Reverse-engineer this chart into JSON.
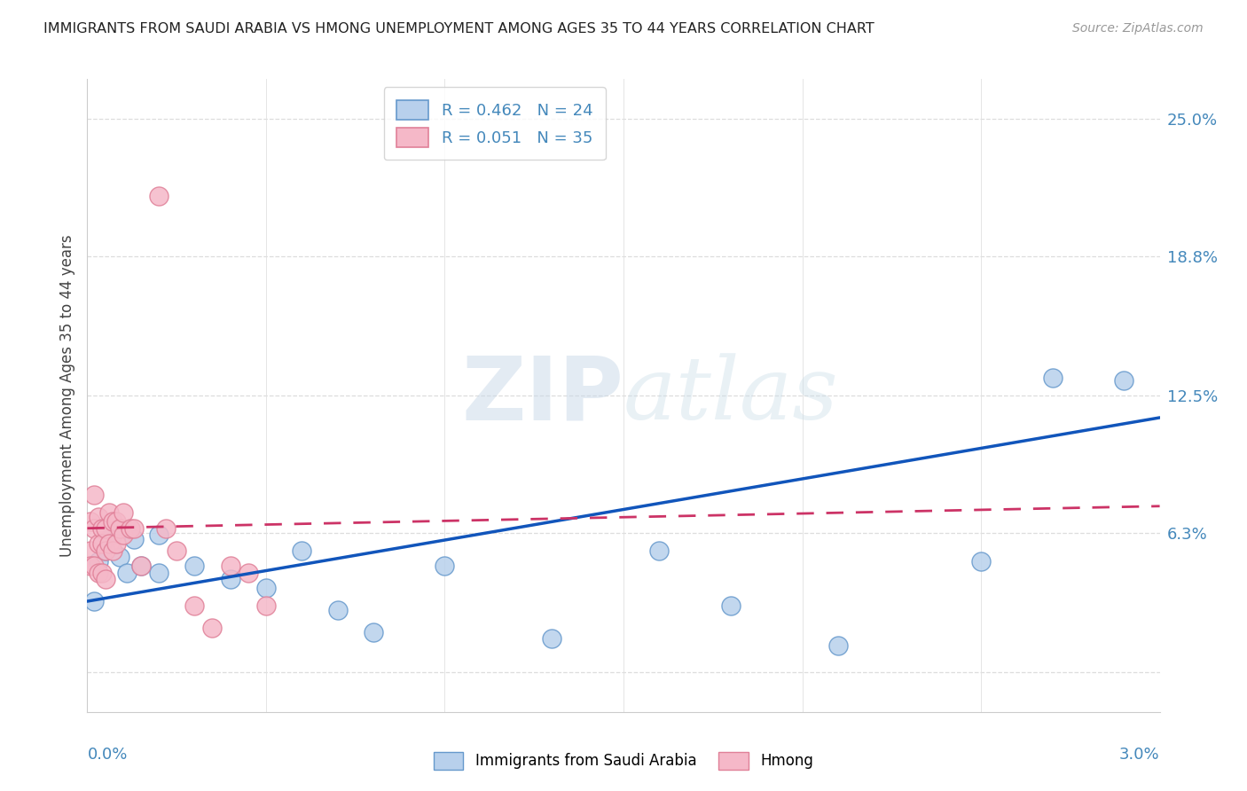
{
  "title": "IMMIGRANTS FROM SAUDI ARABIA VS HMONG UNEMPLOYMENT AMONG AGES 35 TO 44 YEARS CORRELATION CHART",
  "source": "Source: ZipAtlas.com",
  "ylabel": "Unemployment Among Ages 35 to 44 years",
  "ytick_vals": [
    0.0,
    0.063,
    0.125,
    0.188,
    0.25
  ],
  "ytick_labels": [
    "",
    "6.3%",
    "12.5%",
    "18.8%",
    "25.0%"
  ],
  "xmin": 0.0,
  "xmax": 0.03,
  "ymin": -0.018,
  "ymax": 0.268,
  "saudi_color_face": "#b8d0ec",
  "saudi_color_edge": "#6699cc",
  "hmong_color_face": "#f5b8c8",
  "hmong_color_edge": "#e08098",
  "trend_saudi_color": "#1155bb",
  "trend_hmong_color": "#cc3366",
  "watermark": "ZIPatlas",
  "watermark_color": "#dce8f0",
  "legend_R_saudi": "0.462",
  "legend_N_saudi": "24",
  "legend_R_hmong": "0.051",
  "legend_N_hmong": "35",
  "background_color": "#ffffff",
  "grid_color": "#dddddd",
  "title_color": "#222222",
  "source_color": "#999999",
  "axis_label_color": "#4488bb",
  "ylabel_color": "#444444",
  "xtick_minor": [
    0.005,
    0.01,
    0.015,
    0.02,
    0.025
  ],
  "legend_label_saudi": "Immigrants from Saudi Arabia",
  "legend_label_hmong": "Hmong",
  "saudi_x": [
    0.0002,
    0.0003,
    0.0005,
    0.0007,
    0.0009,
    0.0011,
    0.0013,
    0.0015,
    0.002,
    0.002,
    0.003,
    0.004,
    0.005,
    0.006,
    0.007,
    0.008,
    0.01,
    0.013,
    0.016,
    0.018,
    0.021,
    0.025,
    0.027,
    0.029
  ],
  "saudi_y": [
    0.032,
    0.05,
    0.055,
    0.062,
    0.052,
    0.045,
    0.06,
    0.048,
    0.062,
    0.045,
    0.048,
    0.042,
    0.038,
    0.055,
    0.028,
    0.018,
    0.048,
    0.015,
    0.055,
    0.03,
    0.012,
    0.05,
    0.133,
    0.132
  ],
  "hmong_x": [
    0.0001,
    0.0001,
    0.0001,
    0.0002,
    0.0002,
    0.0002,
    0.0003,
    0.0003,
    0.0003,
    0.0004,
    0.0004,
    0.0004,
    0.0005,
    0.0005,
    0.0005,
    0.0006,
    0.0006,
    0.0007,
    0.0007,
    0.0008,
    0.0008,
    0.0009,
    0.001,
    0.001,
    0.0012,
    0.0013,
    0.0015,
    0.002,
    0.0022,
    0.0025,
    0.003,
    0.0035,
    0.004,
    0.0045,
    0.005
  ],
  "hmong_y": [
    0.068,
    0.055,
    0.048,
    0.08,
    0.065,
    0.048,
    0.07,
    0.058,
    0.045,
    0.065,
    0.058,
    0.045,
    0.065,
    0.055,
    0.042,
    0.072,
    0.058,
    0.068,
    0.055,
    0.068,
    0.058,
    0.065,
    0.072,
    0.062,
    0.065,
    0.065,
    0.048,
    0.215,
    0.065,
    0.055,
    0.03,
    0.02,
    0.048,
    0.045,
    0.03
  ],
  "trend_saudi_x0": 0.0,
  "trend_saudi_y0": 0.032,
  "trend_saudi_x1": 0.03,
  "trend_saudi_y1": 0.115,
  "trend_hmong_x0": 0.0,
  "trend_hmong_y0": 0.065,
  "trend_hmong_x1": 0.03,
  "trend_hmong_y1": 0.075
}
